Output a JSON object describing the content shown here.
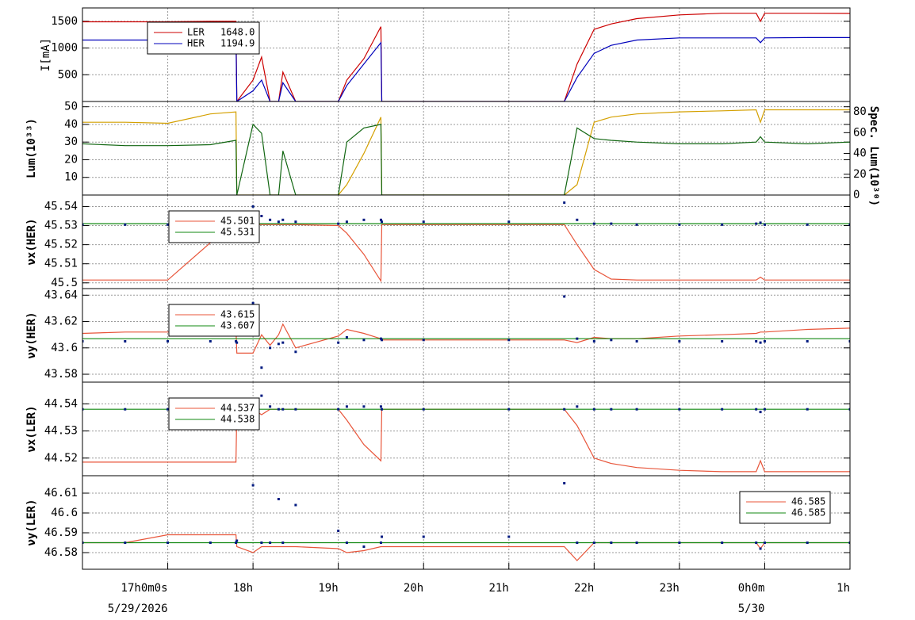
{
  "chart_data": [
    {
      "type": "line",
      "ylabel": "I[mA]",
      "xlim": [
        16,
        25
      ],
      "ylim": [
        0,
        1750
      ],
      "yticks": [
        500,
        1000,
        1500
      ],
      "grid": true,
      "legend": "upper left",
      "x": [
        16.0,
        16.5,
        17.0,
        17.5,
        17.8,
        17.81,
        18.0,
        18.1,
        18.2,
        18.3,
        18.35,
        18.5,
        19.0,
        19.1,
        19.3,
        19.5,
        19.51,
        20.0,
        21.0,
        21.65,
        21.8,
        22.0,
        22.2,
        22.5,
        23.0,
        23.5,
        23.9,
        23.95,
        24.0,
        24.5,
        25.0
      ],
      "series": [
        {
          "name": "LER",
          "last": "1648.0",
          "color": "#cc0000",
          "values": [
            1490,
            1490,
            1490,
            1500,
            1500,
            0,
            400,
            830,
            0,
            0,
            550,
            0,
            0,
            400,
            800,
            1400,
            0,
            0,
            0,
            0,
            700,
            1350,
            1450,
            1550,
            1620,
            1650,
            1650,
            1500,
            1650,
            1650,
            1648
          ]
        },
        {
          "name": "HER",
          "last": "1194.9",
          "color": "#0000bb",
          "values": [
            1150,
            1150,
            1150,
            1150,
            1180,
            0,
            200,
            400,
            0,
            0,
            350,
            0,
            0,
            300,
            700,
            1100,
            0,
            0,
            0,
            0,
            450,
            900,
            1050,
            1150,
            1190,
            1190,
            1190,
            1100,
            1190,
            1195,
            1195
          ]
        }
      ]
    },
    {
      "type": "line",
      "ylabel": "Lum(10³³)",
      "y2label": "Spec. Lum(10³⁰)",
      "xlim": [
        16,
        25
      ],
      "ylim": [
        0,
        53
      ],
      "yticks": [
        10,
        20,
        30,
        40,
        50
      ],
      "y2lim": [
        0,
        90
      ],
      "y2ticks": [
        0,
        20,
        40,
        60,
        80
      ],
      "grid": true,
      "x": [
        16.0,
        16.5,
        17.0,
        17.5,
        17.8,
        17.81,
        18.0,
        18.1,
        18.2,
        18.3,
        18.35,
        18.5,
        19.0,
        19.1,
        19.3,
        19.5,
        19.51,
        20.0,
        21.0,
        21.65,
        21.8,
        22.0,
        22.2,
        22.5,
        23.0,
        23.5,
        23.9,
        23.95,
        24.0,
        24.5,
        25.0
      ],
      "series": [
        {
          "color": "#d4a000",
          "axis": "y2",
          "values": [
            70,
            70,
            69,
            78,
            80,
            0,
            0,
            0,
            0,
            0,
            0,
            0,
            0,
            10,
            40,
            75,
            0,
            0,
            0,
            0,
            10,
            70,
            75,
            78,
            80,
            81,
            82,
            70,
            82,
            82,
            82
          ]
        },
        {
          "color": "#116611",
          "values": [
            29,
            28,
            28,
            28.5,
            31,
            0,
            40,
            35,
            0,
            0,
            25,
            0,
            0,
            30,
            38,
            40,
            0,
            0,
            0,
            0,
            38,
            32,
            31,
            30,
            29,
            29,
            30,
            33,
            30,
            29,
            30
          ]
        }
      ]
    },
    {
      "type": "line",
      "ylabel": "νx(HER)",
      "xlim": [
        16,
        25
      ],
      "ylim": [
        45.497,
        45.546
      ],
      "yticks": [
        45.5,
        45.51,
        45.52,
        45.53,
        45.54
      ],
      "grid": true,
      "legend": "upper left",
      "x": [
        16.0,
        16.5,
        17.0,
        17.5,
        17.8,
        17.81,
        18.0,
        18.1,
        18.2,
        18.3,
        18.35,
        18.5,
        19.0,
        19.1,
        19.3,
        19.5,
        19.51,
        20.0,
        21.0,
        21.65,
        21.8,
        22.0,
        22.2,
        22.5,
        23.0,
        23.5,
        23.9,
        23.95,
        24.0,
        24.5,
        25.0
      ],
      "series": [
        {
          "name": "45.501",
          "color": "#e8553a",
          "values": [
            45.5015,
            45.5015,
            45.5015,
            45.521,
            45.5305,
            45.5305,
            45.5305,
            45.5305,
            45.5305,
            45.5305,
            45.5305,
            45.5305,
            45.53,
            45.526,
            45.515,
            45.501,
            45.5305,
            45.5305,
            45.5305,
            45.5305,
            45.52,
            45.507,
            45.502,
            45.5015,
            45.5015,
            45.5015,
            45.5015,
            45.503,
            45.5015,
            45.5015,
            45.5015
          ]
        },
        {
          "name": "45.531",
          "color": "#118811",
          "values": [
            45.531,
            45.531,
            45.531,
            45.531,
            45.531,
            45.531,
            45.531,
            45.531,
            45.531,
            45.531,
            45.531,
            45.531,
            45.531,
            45.531,
            45.531,
            45.531,
            45.531,
            45.531,
            45.531,
            45.531,
            45.531,
            45.531,
            45.531,
            45.531,
            45.531,
            45.531,
            45.531,
            45.531,
            45.531,
            45.531,
            45.531
          ]
        },
        {
          "color": "#001a80",
          "style": "markers",
          "values": [
            45.5305,
            45.5305,
            45.5305,
            45.5305,
            45.531,
            45.532,
            45.54,
            45.535,
            45.533,
            45.532,
            45.533,
            45.532,
            45.531,
            45.532,
            45.533,
            45.533,
            45.532,
            45.532,
            45.532,
            45.542,
            45.533,
            45.531,
            45.531,
            45.5305,
            45.5305,
            45.5305,
            45.531,
            45.5315,
            45.5305,
            45.5305,
            45.5305
          ]
        }
      ]
    },
    {
      "type": "line",
      "ylabel": "νy(HER)",
      "xlim": [
        16,
        25
      ],
      "ylim": [
        43.574,
        43.645
      ],
      "yticks": [
        43.58,
        43.6,
        43.62,
        43.64
      ],
      "grid": true,
      "legend": "upper left",
      "x": [
        16.0,
        16.5,
        17.0,
        17.5,
        17.8,
        17.81,
        18.0,
        18.1,
        18.2,
        18.3,
        18.35,
        18.5,
        19.0,
        19.1,
        19.3,
        19.5,
        19.51,
        20.0,
        21.0,
        21.65,
        21.8,
        22.0,
        22.2,
        22.5,
        23.0,
        23.5,
        23.9,
        23.95,
        24.0,
        24.5,
        25.0
      ],
      "series": [
        {
          "name": "43.615",
          "color": "#e8553a",
          "values": [
            43.611,
            43.612,
            43.612,
            43.614,
            43.614,
            43.596,
            43.596,
            43.61,
            43.602,
            43.61,
            43.618,
            43.6,
            43.609,
            43.614,
            43.611,
            43.607,
            43.606,
            43.606,
            43.606,
            43.606,
            43.604,
            43.608,
            43.607,
            43.607,
            43.609,
            43.61,
            43.611,
            43.612,
            43.612,
            43.614,
            43.615
          ]
        },
        {
          "name": "43.607",
          "color": "#118811",
          "values": [
            43.607,
            43.607,
            43.607,
            43.607,
            43.607,
            43.607,
            43.607,
            43.607,
            43.607,
            43.607,
            43.607,
            43.607,
            43.607,
            43.607,
            43.607,
            43.607,
            43.607,
            43.607,
            43.607,
            43.607,
            43.607,
            43.607,
            43.607,
            43.607,
            43.607,
            43.607,
            43.607,
            43.607,
            43.607,
            43.607,
            43.607
          ]
        },
        {
          "color": "#001a80",
          "style": "markers",
          "values": [
            43.605,
            43.605,
            43.605,
            43.605,
            43.605,
            43.604,
            43.634,
            43.585,
            43.6,
            43.603,
            43.604,
            43.597,
            43.604,
            43.608,
            43.606,
            43.607,
            43.606,
            43.606,
            43.606,
            43.639,
            43.607,
            43.605,
            43.606,
            43.605,
            43.605,
            43.605,
            43.605,
            43.604,
            43.605,
            43.605,
            43.605
          ]
        }
      ]
    },
    {
      "type": "line",
      "ylabel": "νx(LER)",
      "xlim": [
        16,
        25
      ],
      "ylim": [
        44.5135,
        44.548
      ],
      "yticks": [
        44.52,
        44.53,
        44.54
      ],
      "grid": true,
      "legend": "upper left",
      "x": [
        16.0,
        16.5,
        17.0,
        17.5,
        17.8,
        17.81,
        18.0,
        18.1,
        18.2,
        18.3,
        18.35,
        18.5,
        19.0,
        19.1,
        19.3,
        19.5,
        19.51,
        20.0,
        21.0,
        21.65,
        21.8,
        22.0,
        22.2,
        22.5,
        23.0,
        23.5,
        23.9,
        23.95,
        24.0,
        24.5,
        25.0
      ],
      "series": [
        {
          "name": "44.537",
          "color": "#e8553a",
          "values": [
            44.5185,
            44.5185,
            44.5185,
            44.5185,
            44.5185,
            44.538,
            44.538,
            44.536,
            44.538,
            44.538,
            44.538,
            44.538,
            44.538,
            44.534,
            44.525,
            44.519,
            44.538,
            44.538,
            44.538,
            44.538,
            44.532,
            44.52,
            44.518,
            44.5165,
            44.5155,
            44.515,
            44.515,
            44.519,
            44.515,
            44.515,
            44.515
          ]
        },
        {
          "name": "44.538",
          "color": "#118811",
          "values": [
            44.538,
            44.538,
            44.538,
            44.538,
            44.538,
            44.538,
            44.538,
            44.538,
            44.538,
            44.538,
            44.538,
            44.538,
            44.538,
            44.538,
            44.538,
            44.538,
            44.538,
            44.538,
            44.538,
            44.538,
            44.538,
            44.538,
            44.538,
            44.538,
            44.538,
            44.538,
            44.538,
            44.538,
            44.538,
            44.538,
            44.538
          ]
        },
        {
          "color": "#001a80",
          "style": "markers",
          "values": [
            44.538,
            44.538,
            44.538,
            44.538,
            44.538,
            44.538,
            44.539,
            44.543,
            44.539,
            44.538,
            44.538,
            44.538,
            44.538,
            44.539,
            44.539,
            44.539,
            44.538,
            44.538,
            44.538,
            44.538,
            44.539,
            44.538,
            44.538,
            44.538,
            44.538,
            44.538,
            44.538,
            44.537,
            44.538,
            44.538,
            44.538
          ]
        }
      ]
    },
    {
      "type": "line",
      "ylabel": "νy(LER)",
      "xlim": [
        16,
        25
      ],
      "ylim": [
        46.5716,
        46.6188
      ],
      "yticks": [
        46.58,
        46.59,
        46.6,
        46.61
      ],
      "grid": true,
      "legend": "upper right",
      "xticks": [
        {
          "value": 17,
          "label": "17h0m0s"
        },
        {
          "value": 18,
          "label": "18h"
        },
        {
          "value": 19,
          "label": "19h"
        },
        {
          "value": 20,
          "label": "20h"
        },
        {
          "value": 21,
          "label": "21h"
        },
        {
          "value": 22,
          "label": "22h"
        },
        {
          "value": 23,
          "label": "23h"
        },
        {
          "value": 24,
          "label": "0h0m"
        },
        {
          "value": 25,
          "label": "1h"
        }
      ],
      "date_labels": [
        {
          "value": 17,
          "label": "5/29/2026"
        },
        {
          "value": 24,
          "label": "5/30"
        }
      ],
      "x": [
        16.0,
        16.5,
        17.0,
        17.5,
        17.8,
        17.81,
        18.0,
        18.1,
        18.2,
        18.3,
        18.35,
        18.5,
        19.0,
        19.1,
        19.3,
        19.5,
        19.51,
        20.0,
        21.0,
        21.65,
        21.8,
        22.0,
        22.2,
        22.5,
        23.0,
        23.5,
        23.9,
        23.95,
        24.0,
        24.5,
        25.0
      ],
      "series": [
        {
          "name": "46.585",
          "color": "#e8553a",
          "values": [
            46.585,
            46.585,
            46.589,
            46.589,
            46.589,
            46.583,
            46.58,
            46.583,
            46.583,
            46.583,
            46.583,
            46.583,
            46.582,
            46.58,
            46.581,
            46.583,
            46.583,
            46.583,
            46.583,
            46.583,
            46.576,
            46.585,
            46.585,
            46.585,
            46.585,
            46.585,
            46.585,
            46.582,
            46.585,
            46.585,
            46.585
          ]
        },
        {
          "name": "46.585",
          "color": "#118811",
          "values": [
            46.585,
            46.585,
            46.585,
            46.585,
            46.585,
            46.585,
            46.585,
            46.585,
            46.585,
            46.585,
            46.585,
            46.585,
            46.585,
            46.585,
            46.585,
            46.585,
            46.585,
            46.585,
            46.585,
            46.585,
            46.585,
            46.585,
            46.585,
            46.585,
            46.585,
            46.585,
            46.585,
            46.585,
            46.585,
            46.585,
            46.585
          ]
        },
        {
          "color": "#001a80",
          "style": "markers",
          "values": [
            46.585,
            46.585,
            46.585,
            46.585,
            46.585,
            46.586,
            46.614,
            46.585,
            46.585,
            46.607,
            46.585,
            46.604,
            46.591,
            46.585,
            46.583,
            46.585,
            46.588,
            46.588,
            46.588,
            46.615,
            46.585,
            46.585,
            46.585,
            46.585,
            46.585,
            46.585,
            46.585,
            46.582,
            46.585,
            46.585,
            46.585
          ]
        }
      ]
    }
  ]
}
